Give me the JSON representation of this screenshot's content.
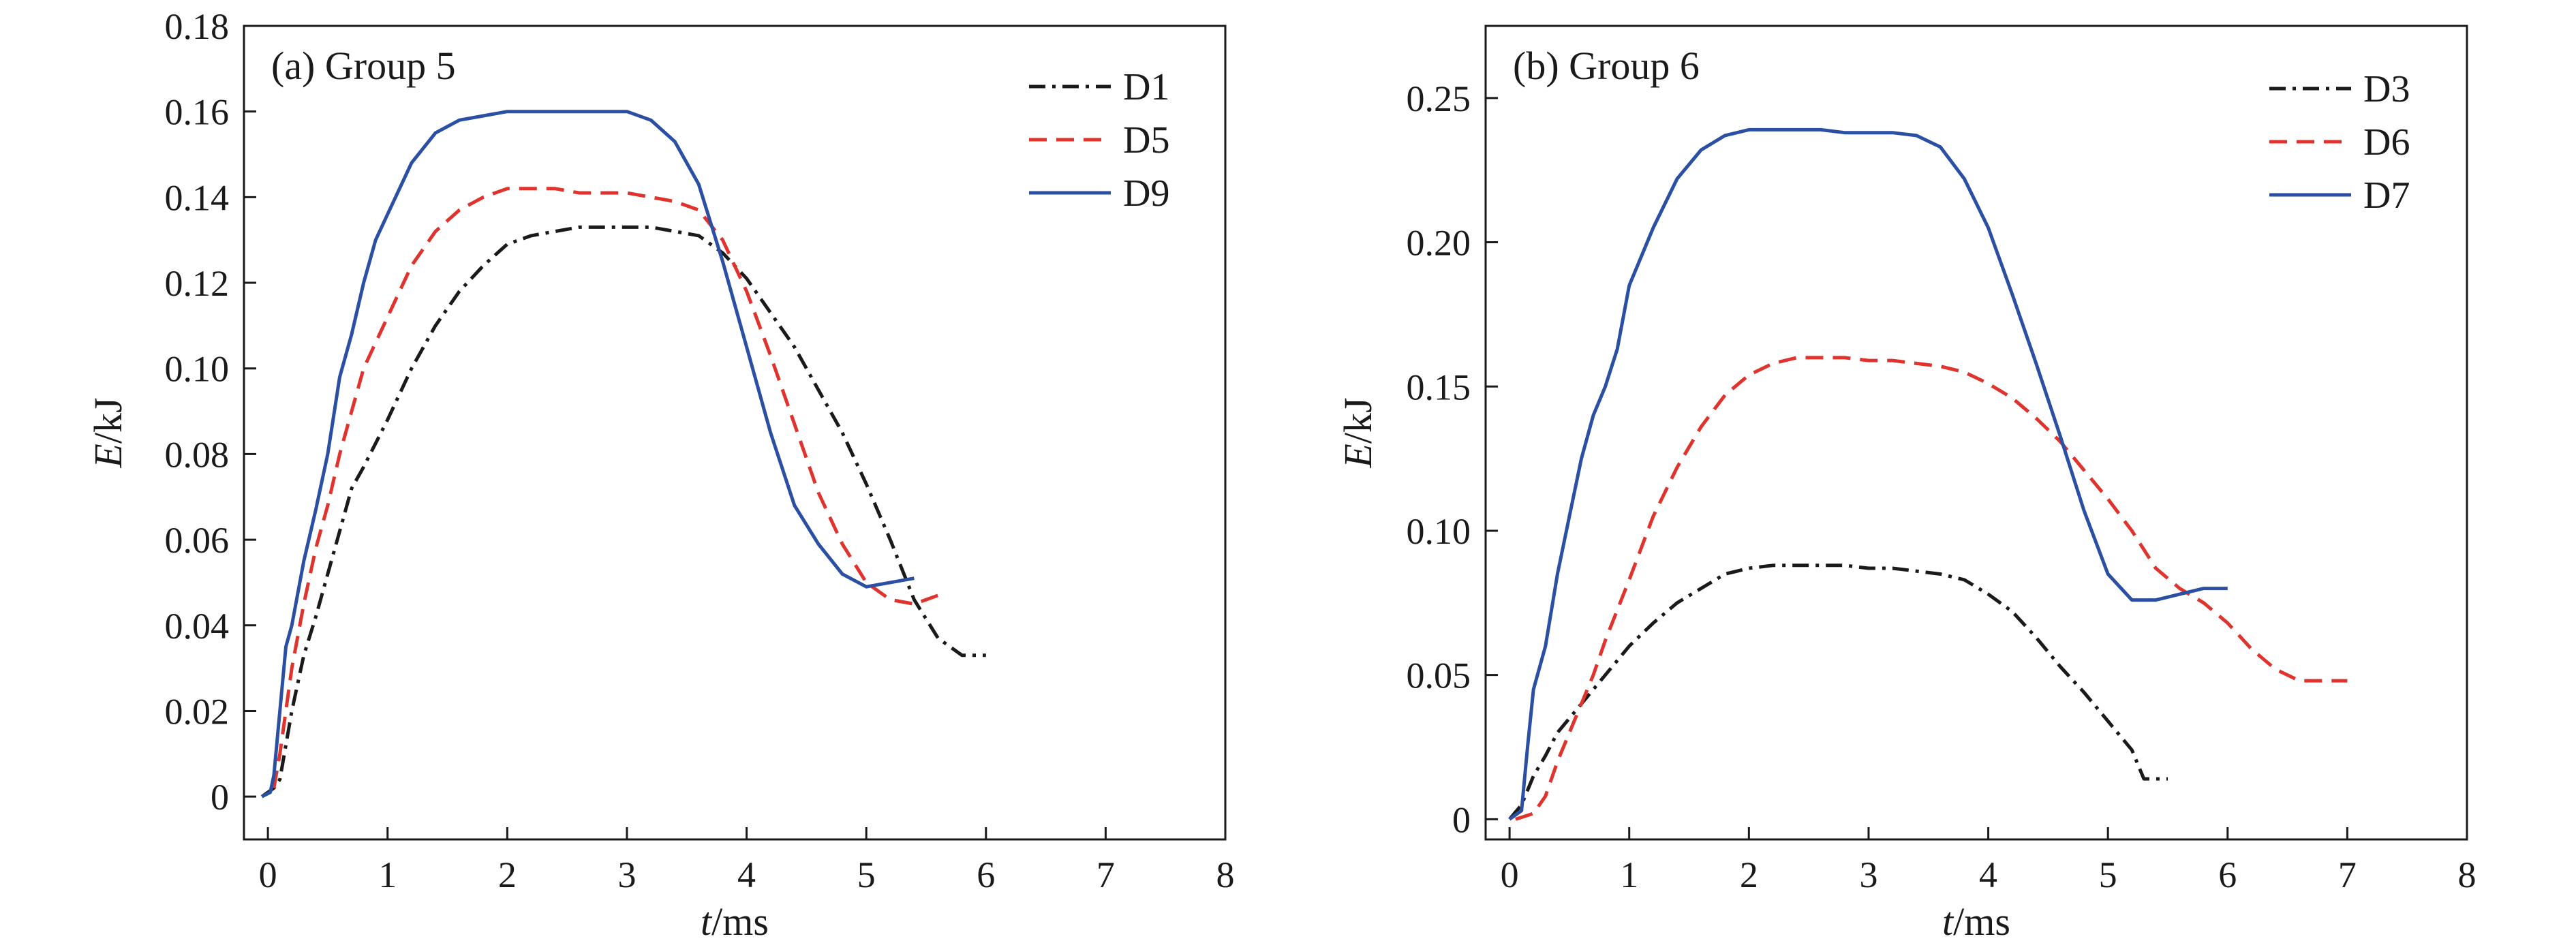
{
  "chart_data": [
    {
      "type": "line",
      "panel_title": "(a) Group 5",
      "xlabel": {
        "italic": "t",
        "rest": "/ms"
      },
      "ylabel": {
        "italic": "E",
        "rest": "/kJ"
      },
      "xlim": [
        -0.2,
        8
      ],
      "ylim": [
        -0.01,
        0.18
      ],
      "xticks": [
        0,
        1,
        2,
        3,
        4,
        5,
        6,
        7,
        8
      ],
      "yticks": [
        0,
        0.02,
        0.04,
        0.06,
        0.08,
        0.1,
        0.12,
        0.14,
        0.16,
        0.18
      ],
      "ytick_labels": [
        "0",
        "0.02",
        "0.04",
        "0.06",
        "0.08",
        "0.10",
        "0.12",
        "0.14",
        "0.16",
        "0.18"
      ],
      "legend_position": "top-right",
      "grid": false,
      "series": [
        {
          "name": "D1",
          "color": "#1a1a1a",
          "style": "dashdot",
          "x": [
            -0.05,
            0.05,
            0.1,
            0.2,
            0.3,
            0.4,
            0.5,
            0.6,
            0.7,
            0.8,
            1.0,
            1.2,
            1.4,
            1.6,
            1.8,
            2.0,
            2.2,
            2.4,
            2.6,
            2.8,
            3.0,
            3.2,
            3.4,
            3.6,
            3.8,
            4.0,
            4.2,
            4.4,
            4.6,
            4.8,
            5.0,
            5.2,
            5.4,
            5.6,
            5.8,
            6.0
          ],
          "y": [
            0.0,
            0.002,
            0.004,
            0.02,
            0.033,
            0.042,
            0.052,
            0.062,
            0.072,
            0.077,
            0.088,
            0.1,
            0.11,
            0.118,
            0.124,
            0.129,
            0.131,
            0.132,
            0.133,
            0.133,
            0.133,
            0.133,
            0.132,
            0.131,
            0.127,
            0.121,
            0.113,
            0.105,
            0.095,
            0.085,
            0.073,
            0.06,
            0.046,
            0.037,
            0.033,
            0.033
          ]
        },
        {
          "name": "D5",
          "color": "#e0332d",
          "style": "dashed",
          "x": [
            0.05,
            0.1,
            0.2,
            0.3,
            0.4,
            0.5,
            0.6,
            0.7,
            0.8,
            1.0,
            1.2,
            1.4,
            1.6,
            1.8,
            2.0,
            2.2,
            2.4,
            2.6,
            2.8,
            3.0,
            3.2,
            3.4,
            3.6,
            3.8,
            4.0,
            4.2,
            4.4,
            4.6,
            4.8,
            5.0,
            5.2,
            5.4,
            5.6
          ],
          "y": [
            0.002,
            0.01,
            0.03,
            0.045,
            0.058,
            0.068,
            0.08,
            0.09,
            0.1,
            0.112,
            0.124,
            0.132,
            0.137,
            0.14,
            0.142,
            0.142,
            0.142,
            0.141,
            0.141,
            0.141,
            0.14,
            0.139,
            0.137,
            0.13,
            0.118,
            0.103,
            0.087,
            0.071,
            0.059,
            0.05,
            0.046,
            0.045,
            0.047
          ]
        },
        {
          "name": "D9",
          "color": "#2a4fa3",
          "style": "solid",
          "x": [
            -0.05,
            0.02,
            0.05,
            0.1,
            0.15,
            0.2,
            0.3,
            0.4,
            0.5,
            0.6,
            0.7,
            0.8,
            0.9,
            1.0,
            1.1,
            1.2,
            1.4,
            1.6,
            1.8,
            2.0,
            2.2,
            2.4,
            2.6,
            2.8,
            3.0,
            3.2,
            3.4,
            3.6,
            3.8,
            4.0,
            4.2,
            4.4,
            4.6,
            4.8,
            5.0,
            5.2,
            5.4
          ],
          "y": [
            0.0,
            0.001,
            0.005,
            0.02,
            0.035,
            0.04,
            0.055,
            0.067,
            0.08,
            0.098,
            0.108,
            0.12,
            0.13,
            0.136,
            0.142,
            0.148,
            0.155,
            0.158,
            0.159,
            0.16,
            0.16,
            0.16,
            0.16,
            0.16,
            0.16,
            0.158,
            0.153,
            0.143,
            0.125,
            0.105,
            0.085,
            0.068,
            0.059,
            0.052,
            0.049,
            0.05,
            0.051
          ]
        }
      ]
    },
    {
      "type": "line",
      "panel_title": "(b) Group 6",
      "xlabel": {
        "italic": "t",
        "rest": "/ms"
      },
      "ylabel": {
        "italic": "E",
        "rest": "/kJ"
      },
      "xlim": [
        -0.2,
        8
      ],
      "ylim": [
        -0.007,
        0.275
      ],
      "xticks": [
        0,
        1,
        2,
        3,
        4,
        5,
        6,
        7,
        8
      ],
      "yticks": [
        0,
        0.05,
        0.1,
        0.15,
        0.2,
        0.25
      ],
      "ytick_labels": [
        "0",
        "0.05",
        "0.10",
        "0.15",
        "0.20",
        "0.25"
      ],
      "legend_position": "top-right",
      "grid": false,
      "series": [
        {
          "name": "D3",
          "color": "#1a1a1a",
          "style": "dashdot",
          "x": [
            0.0,
            0.1,
            0.2,
            0.3,
            0.4,
            0.6,
            0.8,
            1.0,
            1.2,
            1.4,
            1.6,
            1.8,
            2.0,
            2.2,
            2.4,
            2.6,
            2.8,
            3.0,
            3.2,
            3.4,
            3.6,
            3.8,
            4.0,
            4.2,
            4.4,
            4.6,
            4.8,
            5.0,
            5.2,
            5.3,
            5.4,
            5.5
          ],
          "y": [
            0.0,
            0.005,
            0.015,
            0.022,
            0.03,
            0.04,
            0.05,
            0.06,
            0.068,
            0.075,
            0.08,
            0.085,
            0.087,
            0.088,
            0.088,
            0.088,
            0.088,
            0.087,
            0.087,
            0.086,
            0.085,
            0.083,
            0.078,
            0.072,
            0.063,
            0.053,
            0.044,
            0.034,
            0.024,
            0.014,
            0.014,
            0.014
          ]
        },
        {
          "name": "D6",
          "color": "#e0332d",
          "style": "dashed",
          "x": [
            0.05,
            0.2,
            0.3,
            0.4,
            0.5,
            0.6,
            0.7,
            0.8,
            1.0,
            1.2,
            1.4,
            1.6,
            1.8,
            2.0,
            2.2,
            2.4,
            2.6,
            2.8,
            3.0,
            3.2,
            3.4,
            3.6,
            3.8,
            4.0,
            4.2,
            4.4,
            4.6,
            4.8,
            5.0,
            5.2,
            5.4,
            5.6,
            5.8,
            6.0,
            6.2,
            6.4,
            6.6,
            6.8,
            7.0
          ],
          "y": [
            0.0,
            0.002,
            0.008,
            0.02,
            0.03,
            0.04,
            0.05,
            0.062,
            0.083,
            0.105,
            0.122,
            0.136,
            0.147,
            0.154,
            0.158,
            0.16,
            0.16,
            0.16,
            0.159,
            0.159,
            0.158,
            0.157,
            0.155,
            0.151,
            0.146,
            0.139,
            0.131,
            0.121,
            0.111,
            0.1,
            0.087,
            0.08,
            0.075,
            0.068,
            0.059,
            0.052,
            0.048,
            0.048,
            0.048
          ]
        },
        {
          "name": "D7",
          "color": "#2a4fa3",
          "style": "solid",
          "x": [
            0.0,
            0.1,
            0.15,
            0.2,
            0.3,
            0.4,
            0.5,
            0.6,
            0.7,
            0.8,
            0.9,
            1.0,
            1.2,
            1.4,
            1.6,
            1.8,
            2.0,
            2.2,
            2.4,
            2.6,
            2.8,
            3.0,
            3.2,
            3.4,
            3.6,
            3.8,
            4.0,
            4.2,
            4.4,
            4.6,
            4.8,
            5.0,
            5.2,
            5.4,
            5.6,
            5.8,
            6.0
          ],
          "y": [
            0.0,
            0.003,
            0.025,
            0.045,
            0.06,
            0.085,
            0.105,
            0.125,
            0.14,
            0.15,
            0.163,
            0.185,
            0.205,
            0.222,
            0.232,
            0.237,
            0.239,
            0.239,
            0.239,
            0.239,
            0.238,
            0.238,
            0.238,
            0.237,
            0.233,
            0.222,
            0.205,
            0.182,
            0.158,
            0.133,
            0.107,
            0.085,
            0.076,
            0.076,
            0.078,
            0.08,
            0.08
          ]
        }
      ]
    }
  ]
}
